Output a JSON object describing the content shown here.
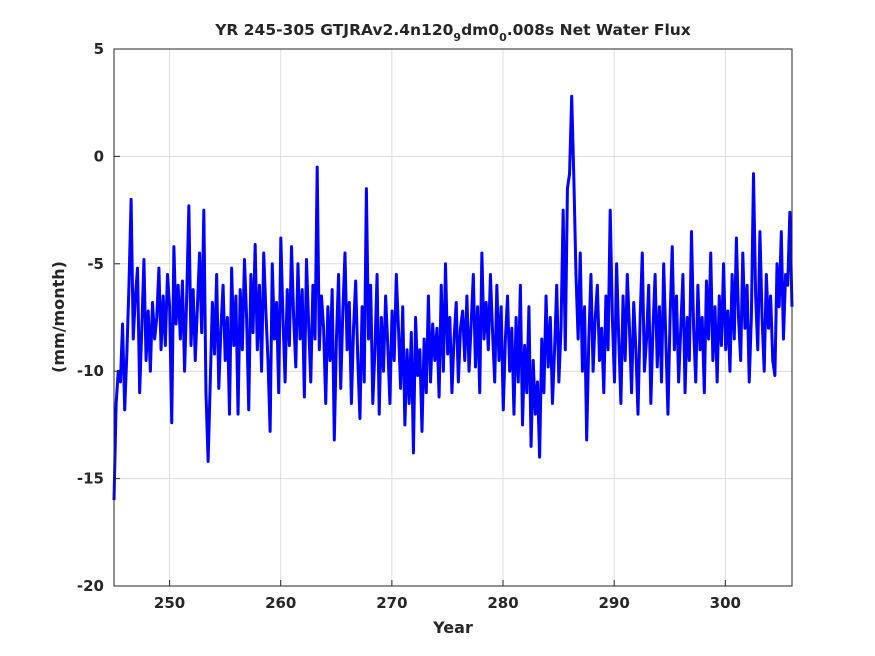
{
  "chart_data": {
    "type": "line",
    "title": "YR 245-305 GTJRAv2.4n120",
    "title_parts": {
      "prefix": "YR 245-305 GTJRAv2.4n120",
      "sub1": "9",
      "mid": "dm0",
      "sub2": "0",
      "suffix": ".008s Net Water Flux"
    },
    "xlabel": "Year",
    "ylabel": "(mm/month)",
    "xlim": [
      245,
      306
    ],
    "ylim": [
      -20,
      5
    ],
    "xticks": [
      250,
      260,
      270,
      280,
      290,
      300
    ],
    "yticks": [
      5,
      0,
      -5,
      -10,
      -15,
      -20
    ],
    "grid": true,
    "series_color": "#0000ff",
    "summary_statistics": {
      "approx_mean": -7.5,
      "approx_min": -16.0,
      "approx_max": 3.0
    },
    "series": [
      {
        "values": [
          -16.0,
          -11.5,
          -10.0,
          -10.5,
          -7.8,
          -11.8,
          -9.2,
          -6.0,
          -2.0,
          -8.5,
          -6.5,
          -5.2,
          -11.0,
          -8.0,
          -4.8,
          -9.5,
          -7.2,
          -10.0,
          -6.8,
          -8.5,
          -7.5,
          -5.2,
          -9.0,
          -6.5,
          -8.8,
          -5.5,
          -7.0,
          -12.4,
          -4.2,
          -7.8,
          -6.0,
          -8.5,
          -5.8,
          -10.0,
          -6.5,
          -2.3,
          -8.8,
          -6.2,
          -9.5,
          -7.0,
          -4.5,
          -8.2,
          -2.5,
          -11.0,
          -14.2,
          -10.5,
          -6.8,
          -9.2,
          -5.5,
          -10.8,
          -8.0,
          -6.0,
          -9.5,
          -7.5,
          -12.0,
          -5.2,
          -8.8,
          -6.5,
          -12.0,
          -6.2,
          -9.0,
          -4.8,
          -7.5,
          -11.8,
          -5.5,
          -8.2,
          -4.1,
          -9.0,
          -6.0,
          -10.0,
          -4.5,
          -7.2,
          -9.5,
          -12.8,
          -5.0,
          -8.5,
          -6.8,
          -11.0,
          -3.8,
          -7.5,
          -10.5,
          -6.2,
          -8.8,
          -4.2,
          -7.5,
          -9.8,
          -5.0,
          -8.5,
          -6.2,
          -11.2,
          -4.8,
          -7.8,
          -10.5,
          -6.0,
          -8.5,
          -0.5,
          -9.0,
          -6.5,
          -8.0,
          -11.5,
          -7.0,
          -9.5,
          -6.2,
          -13.2,
          -8.5,
          -5.5,
          -10.8,
          -7.2,
          -4.5,
          -9.0,
          -6.8,
          -11.5,
          -8.0,
          -5.8,
          -9.5,
          -12.2,
          -7.0,
          -10.5,
          -1.5,
          -8.5,
          -6.0,
          -11.5,
          -9.0,
          -5.5,
          -12.0,
          -7.5,
          -10.0,
          -6.5,
          -8.8,
          -11.5,
          -7.2,
          -9.5,
          -5.5,
          -8.0,
          -10.8,
          -7.0,
          -12.5,
          -9.0,
          -11.5,
          -8.2,
          -13.8,
          -7.5,
          -10.2,
          -9.0,
          -12.8,
          -8.5,
          -11.0,
          -6.5,
          -10.5,
          -7.8,
          -9.5,
          -8.0,
          -11.2,
          -6.0,
          -10.0,
          -5.0,
          -9.2,
          -7.5,
          -11.0,
          -8.5,
          -6.8,
          -10.5,
          -8.0,
          -7.2,
          -9.5,
          -6.5,
          -10.0,
          -7.8,
          -5.5,
          -9.8,
          -7.0,
          -11.0,
          -4.5,
          -8.5,
          -6.8,
          -9.0,
          -5.5,
          -8.2,
          -10.5,
          -6.0,
          -9.5,
          -7.0,
          -11.8,
          -8.5,
          -6.5,
          -10.0,
          -8.0,
          -12.0,
          -7.5,
          -10.5,
          -6.0,
          -12.5,
          -8.8,
          -11.0,
          -7.0,
          -13.5,
          -9.5,
          -12.0,
          -10.5,
          -14.0,
          -8.5,
          -11.0,
          -6.5,
          -9.8,
          -7.5,
          -11.5,
          -9.0,
          -6.0,
          -10.5,
          -8.0,
          -2.5,
          -9.0,
          -1.5,
          -0.8,
          2.8,
          -1.0,
          -5.5,
          -8.5,
          -4.5,
          -10.0,
          -7.0,
          -13.2,
          -8.5,
          -5.5,
          -10.0,
          -7.5,
          -6.0,
          -9.5,
          -8.0,
          -11.0,
          -6.5,
          -9.0,
          -2.5,
          -7.5,
          -10.5,
          -5.0,
          -8.5,
          -11.5,
          -6.5,
          -9.5,
          -5.5,
          -8.0,
          -11.0,
          -6.8,
          -9.0,
          -12.0,
          -7.5,
          -4.5,
          -10.0,
          -8.5,
          -6.0,
          -11.5,
          -8.0,
          -5.5,
          -9.8,
          -7.0,
          -10.5,
          -5.0,
          -8.5,
          -12.0,
          -7.5,
          -4.2,
          -9.0,
          -6.5,
          -10.5,
          -8.0,
          -5.5,
          -11.0,
          -7.5,
          -9.5,
          -3.5,
          -8.0,
          -10.5,
          -6.0,
          -9.0,
          -7.5,
          -11.0,
          -5.8,
          -8.5,
          -4.5,
          -9.5,
          -7.0,
          -10.5,
          -6.5,
          -8.8,
          -5.0,
          -9.0,
          -7.2,
          -10.0,
          -5.5,
          -8.5,
          -3.8,
          -7.5,
          -9.5,
          -4.5,
          -8.0,
          -6.0,
          -10.5,
          -7.5,
          -0.8,
          -6.5,
          -9.0,
          -3.5,
          -7.5,
          -10.0,
          -5.5,
          -8.0,
          -6.5,
          -9.5,
          -10.2,
          -5.0,
          -7.0,
          -3.5,
          -8.5,
          -5.5,
          -6.0,
          -2.6,
          -7.0
        ]
      }
    ]
  }
}
